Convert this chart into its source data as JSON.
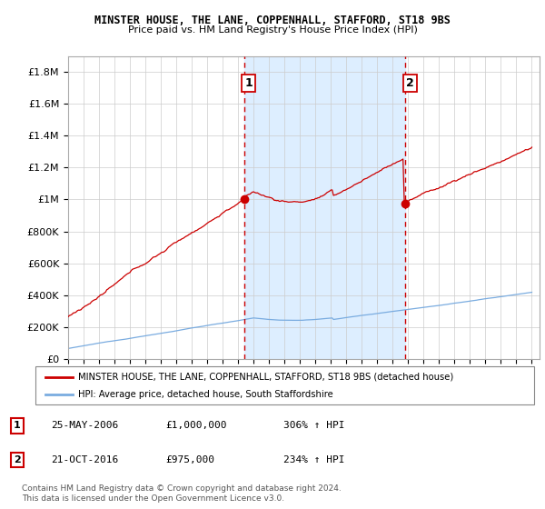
{
  "title": "MINSTER HOUSE, THE LANE, COPPENHALL, STAFFORD, ST18 9BS",
  "subtitle": "Price paid vs. HM Land Registry's House Price Index (HPI)",
  "ylim": [
    0,
    1900000
  ],
  "yticks": [
    0,
    200000,
    400000,
    600000,
    800000,
    1000000,
    1200000,
    1400000,
    1600000,
    1800000
  ],
  "ytick_labels": [
    "£0",
    "£200K",
    "£400K",
    "£600K",
    "£800K",
    "£1M",
    "£1.2M",
    "£1.4M",
    "£1.6M",
    "£1.8M"
  ],
  "xlim": [
    1995,
    2025.5
  ],
  "sale1_x": 2006.38,
  "sale1_y": 1000000,
  "sale1_label": "1",
  "sale2_x": 2016.8,
  "sale2_y": 975000,
  "sale2_label": "2",
  "red_line_color": "#cc0000",
  "blue_line_color": "#7aace0",
  "shade_color": "#ddeeff",
  "dashed_line_color": "#cc0000",
  "legend_entry1": "MINSTER HOUSE, THE LANE, COPPENHALL, STAFFORD, ST18 9BS (detached house)",
  "legend_entry2": "HPI: Average price, detached house, South Staffordshire",
  "table_row1": [
    "1",
    "25-MAY-2006",
    "£1,000,000",
    "306% ↑ HPI"
  ],
  "table_row2": [
    "2",
    "21-OCT-2016",
    "£975,000",
    "234% ↑ HPI"
  ],
  "footnote": "Contains HM Land Registry data © Crown copyright and database right 2024.\nThis data is licensed under the Open Government Licence v3.0.",
  "background_color": "#ffffff",
  "grid_color": "#cccccc"
}
